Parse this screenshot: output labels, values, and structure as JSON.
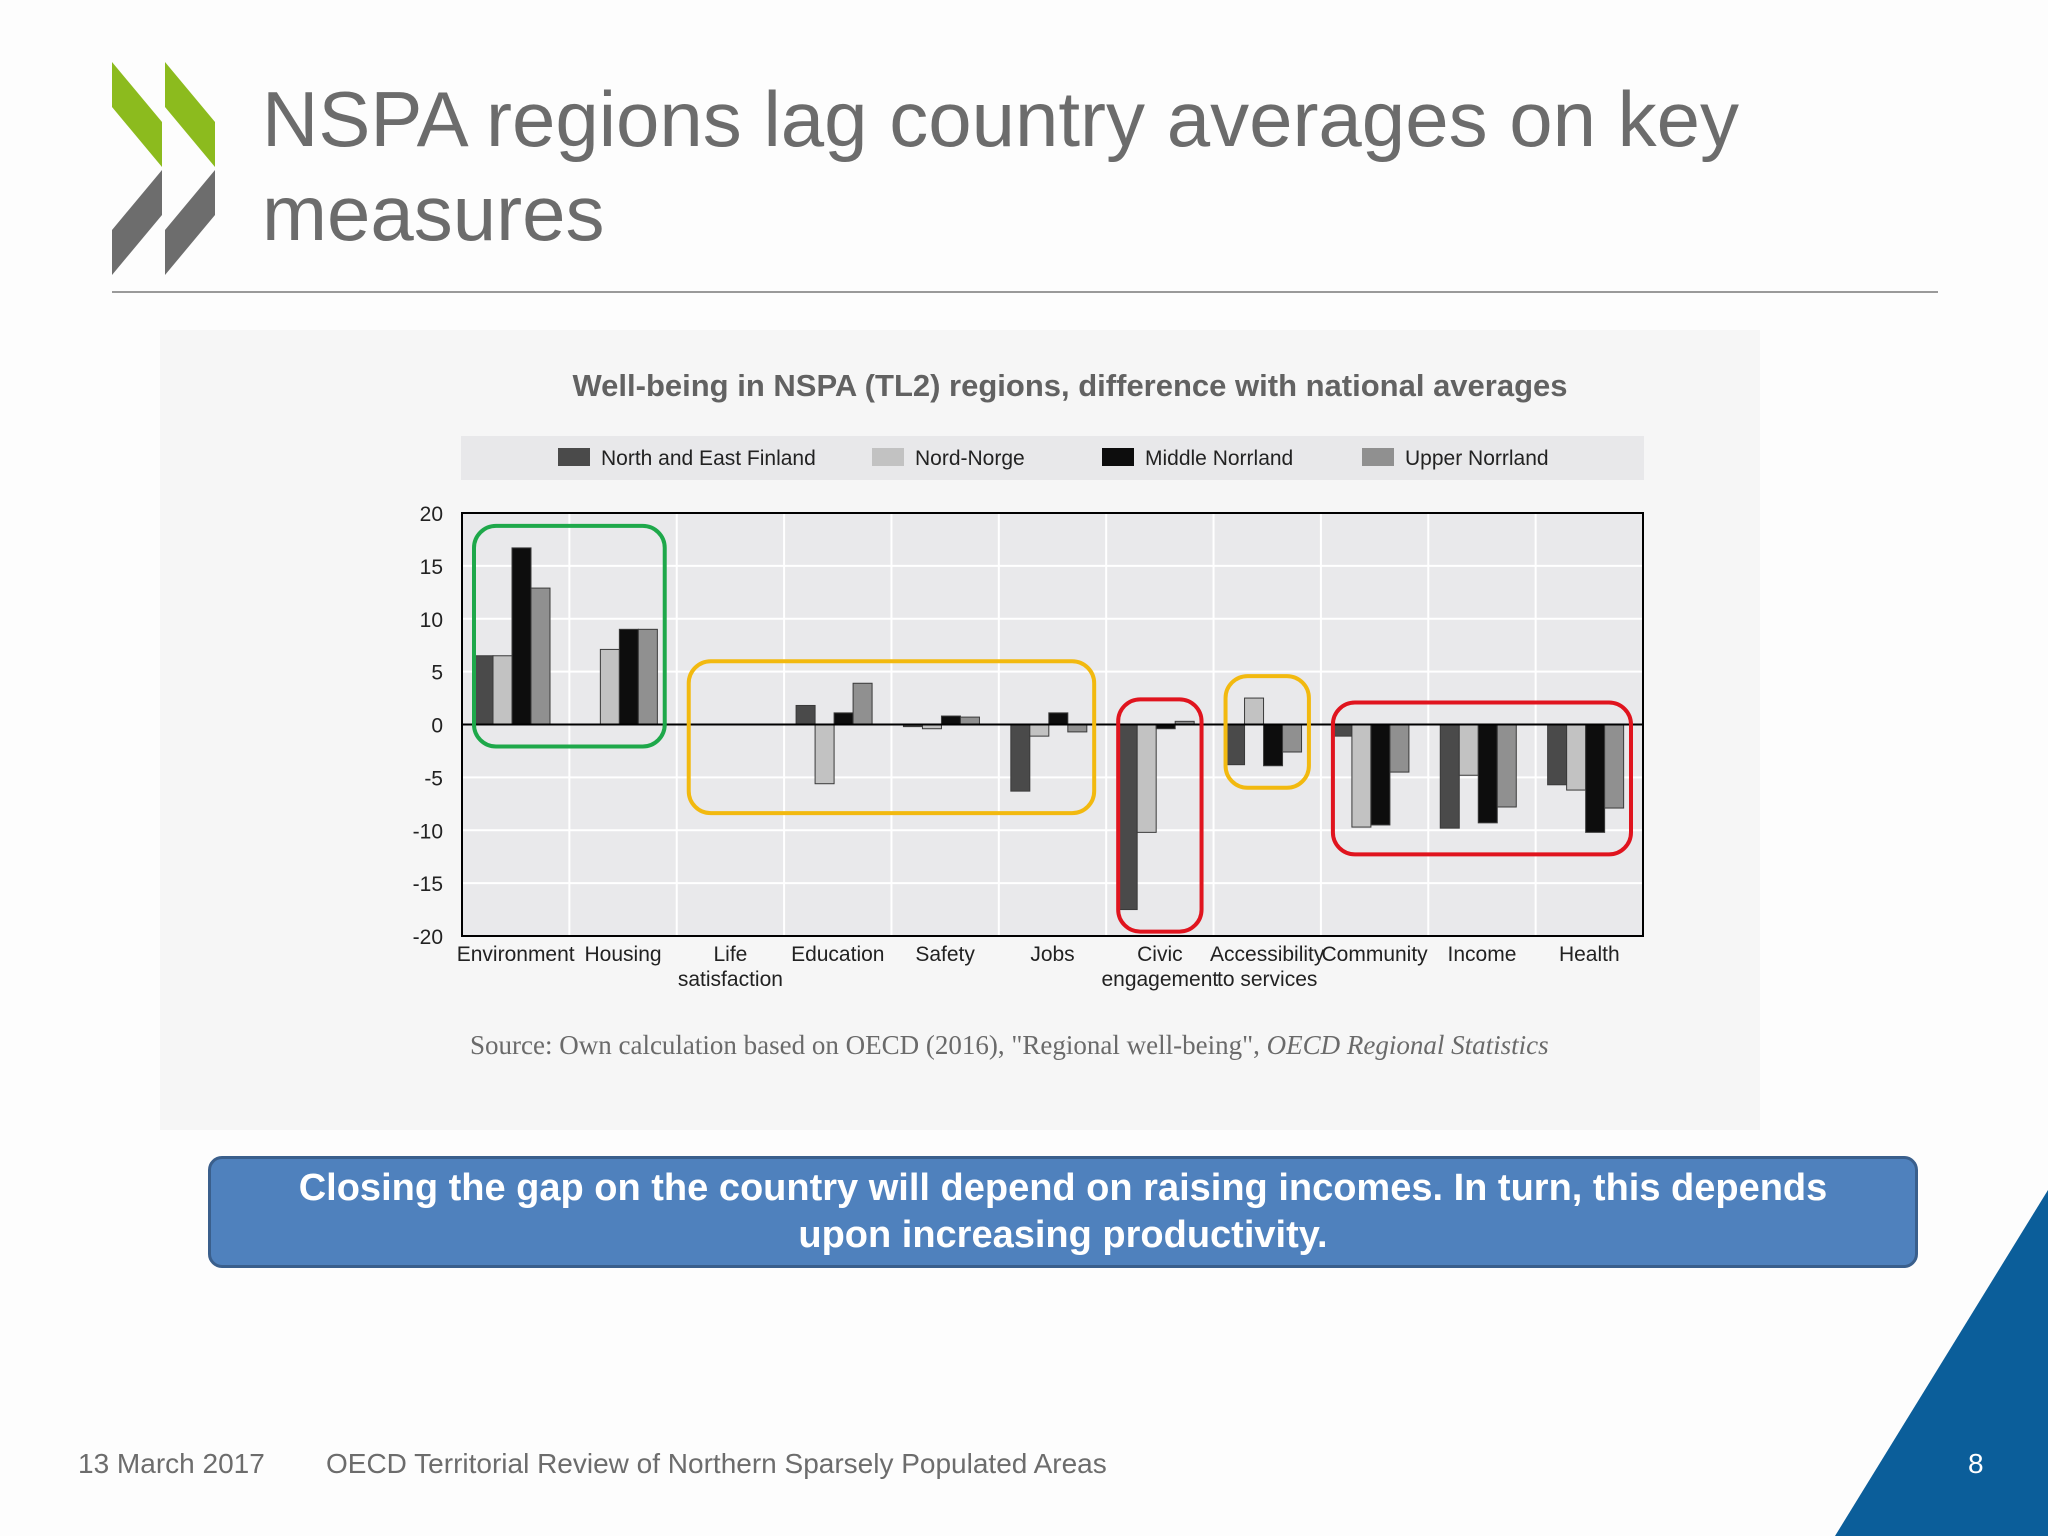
{
  "slide": {
    "title": "NSPA regions lag country averages on key measures",
    "callout": "Closing the gap on the country will depend on raising incomes. In turn, this depends upon increasing productivity.",
    "source_text": "Source: Own calculation based on OECD (2016), \"Regional well-being\",",
    "source_italic": "OECD Regional Statistics",
    "footer_date": "13 March 2017",
    "footer_text": "OECD Territorial Review of Northern Sparsely Populated Areas",
    "page_number": "8"
  },
  "colors": {
    "logo_green": "#8cbb1e",
    "logo_grey": "#6d6d6d",
    "corner_blue": "#0b5e9a",
    "callout_blue": "#4f81bd",
    "highlight_green": "#1ea84a",
    "highlight_yellow": "#f2b90f",
    "highlight_red": "#e0141e"
  },
  "chart_data": {
    "type": "bar",
    "title": "Well-being in NSPA (TL2) regions, difference with national averages",
    "categories": [
      "Environment",
      "Housing",
      "Life satisfaction",
      "Education",
      "Safety",
      "Jobs",
      "Civic engagement",
      "Accessibility to services",
      "Community",
      "Income",
      "Health"
    ],
    "category_lines": [
      [
        "Environment"
      ],
      [
        "Housing"
      ],
      [
        "Life",
        "satisfaction"
      ],
      [
        "Education"
      ],
      [
        "Safety"
      ],
      [
        "Jobs"
      ],
      [
        "Civic",
        "engagement"
      ],
      [
        "Accessibility",
        "to services"
      ],
      [
        "Community"
      ],
      [
        "Income"
      ],
      [
        "Health"
      ]
    ],
    "series": [
      {
        "name": "North and East Finland",
        "color": "#4a4a4a",
        "values": [
          6.5,
          null,
          null,
          1.8,
          -0.2,
          -6.3,
          -17.5,
          -3.8,
          -1.1,
          -9.8,
          -5.7
        ]
      },
      {
        "name": "Nord-Norge",
        "color": "#c2c2c2",
        "values": [
          6.5,
          7.1,
          null,
          -5.6,
          -0.4,
          -1.1,
          -10.2,
          2.5,
          -9.7,
          -4.8,
          -6.2
        ]
      },
      {
        "name": "Middle Norrland",
        "color": "#0d0d0d",
        "values": [
          16.7,
          9.0,
          null,
          1.1,
          0.8,
          1.1,
          -0.4,
          -3.9,
          -9.5,
          -9.3,
          -10.2
        ]
      },
      {
        "name": "Upper Norrland",
        "color": "#909090",
        "values": [
          12.9,
          9.0,
          null,
          3.9,
          0.7,
          -0.7,
          0.3,
          -2.6,
          -4.5,
          -7.8,
          -7.9
        ]
      }
    ],
    "ylim": [
      -20,
      20
    ],
    "yticks": [
      20,
      15,
      10,
      5,
      0,
      -5,
      -10,
      -15,
      -20
    ],
    "grid": true,
    "legend_position": "top",
    "highlight_groups": [
      {
        "color": "green",
        "categories": [
          "Environment",
          "Housing"
        ]
      },
      {
        "color": "yellow",
        "categories": [
          "Life satisfaction",
          "Education",
          "Safety",
          "Jobs"
        ]
      },
      {
        "color": "red",
        "categories": [
          "Civic engagement"
        ]
      },
      {
        "color": "yellow",
        "categories": [
          "Accessibility to services"
        ]
      },
      {
        "color": "red",
        "categories": [
          "Community",
          "Income",
          "Health"
        ]
      }
    ]
  }
}
